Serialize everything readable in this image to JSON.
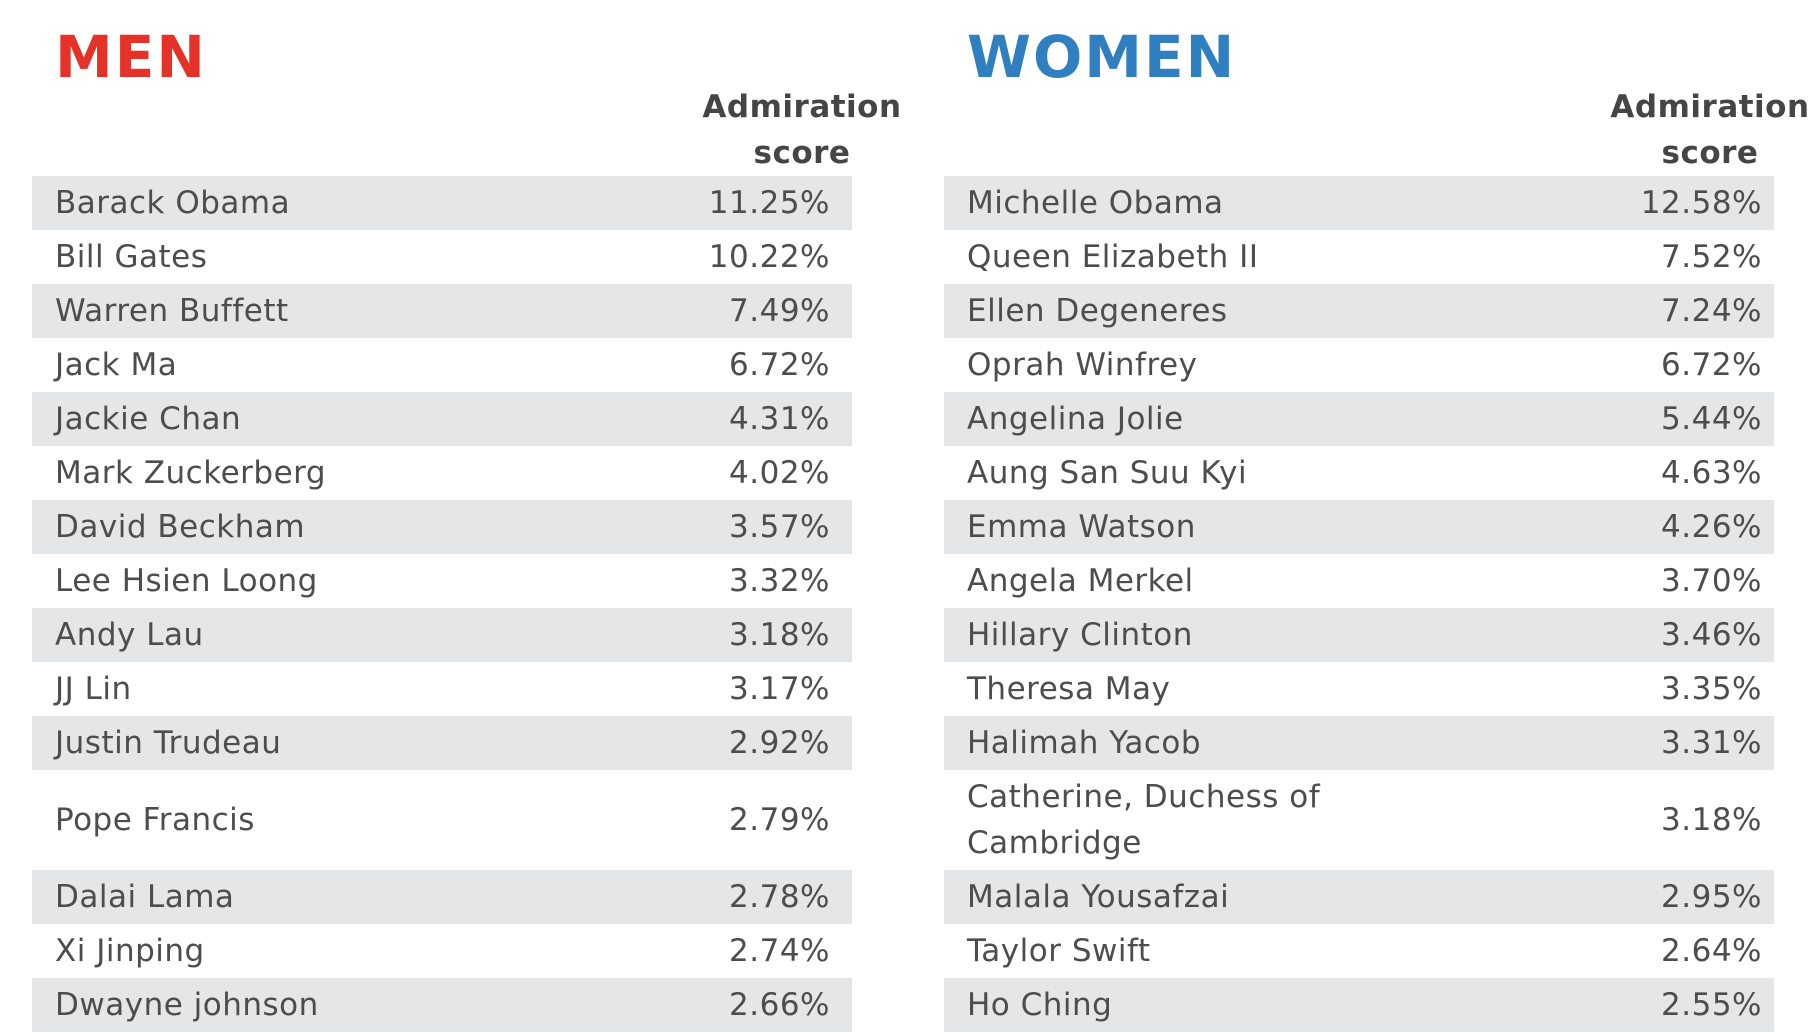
{
  "chart_data": [
    {
      "type": "table",
      "title": "MEN",
      "column_header": [
        "Admiration",
        "score"
      ],
      "rows": [
        {
          "name": "Barack Obama",
          "score": "11.25%"
        },
        {
          "name": "Bill Gates",
          "score": "10.22%"
        },
        {
          "name": "Warren Buffett",
          "score": "7.49%"
        },
        {
          "name": "Jack Ma",
          "score": "6.72%"
        },
        {
          "name": "Jackie Chan",
          "score": "4.31%"
        },
        {
          "name": "Mark Zuckerberg",
          "score": "4.02%"
        },
        {
          "name": "David Beckham",
          "score": "3.57%"
        },
        {
          "name": "Lee Hsien Loong",
          "score": "3.32%"
        },
        {
          "name": "Andy Lau",
          "score": "3.18%"
        },
        {
          "name": "JJ Lin",
          "score": "3.17%"
        },
        {
          "name": "Justin Trudeau",
          "score": "2.92%"
        },
        {
          "name": "Pope Francis",
          "score": "2.79%"
        },
        {
          "name": "Dalai Lama",
          "score": "2.78%"
        },
        {
          "name": "Xi Jinping",
          "score": "2.74%"
        },
        {
          "name": "Dwayne johnson",
          "score": "2.66%"
        }
      ]
    },
    {
      "type": "table",
      "title": "WOMEN",
      "column_header": [
        "Admiration",
        "score"
      ],
      "rows": [
        {
          "name": "Michelle Obama",
          "score": "12.58%"
        },
        {
          "name": "Queen Elizabeth II",
          "score": "7.52%"
        },
        {
          "name": "Ellen Degeneres",
          "score": "7.24%"
        },
        {
          "name": "Oprah Winfrey",
          "score": "6.72%"
        },
        {
          "name": "Angelina Jolie",
          "score": "5.44%"
        },
        {
          "name": "Aung San Suu Kyi",
          "score": "4.63%"
        },
        {
          "name": "Emma Watson",
          "score": "4.26%"
        },
        {
          "name": "Angela Merkel",
          "score": "3.70%"
        },
        {
          "name": "Hillary Clinton",
          "score": "3.46%"
        },
        {
          "name": "Theresa May",
          "score": "3.35%"
        },
        {
          "name": "Halimah Yacob",
          "score": "3.31%"
        },
        {
          "name": "Catherine, Duchess of Cambridge",
          "score": "3.18%"
        },
        {
          "name": "Malala Yousafzai",
          "score": "2.95%"
        },
        {
          "name": "Taylor Swift",
          "score": "2.64%"
        },
        {
          "name": "Ho Ching",
          "score": "2.55%"
        }
      ]
    }
  ],
  "colors": {
    "men_heading": "#e53228",
    "women_heading": "#2f7fc1",
    "row_stripe": "#e5e6e8",
    "text": "#4d4d4d"
  }
}
